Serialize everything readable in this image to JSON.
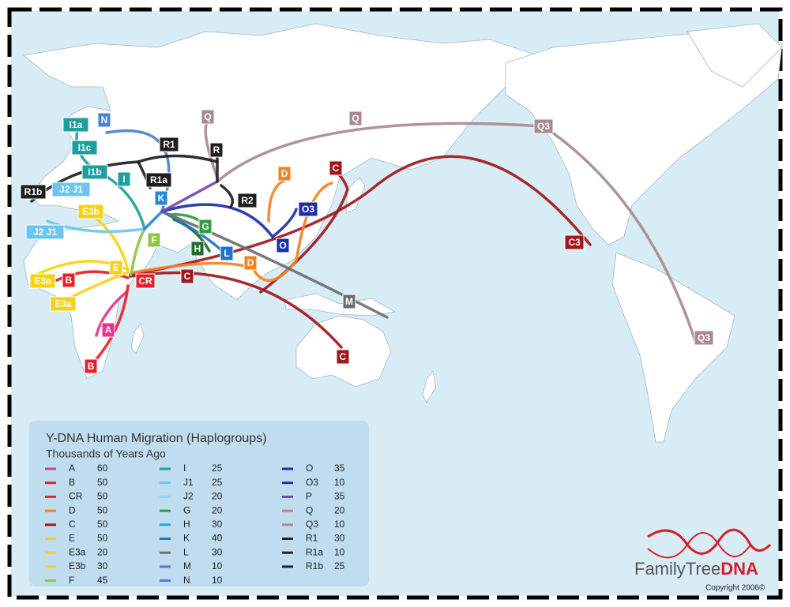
{
  "map_labels": [
    {
      "text": "I1a",
      "color": "#1f9e9e"
    },
    {
      "text": "N",
      "color": "#4a7fd4"
    },
    {
      "text": "I1c",
      "color": "#1f9e9e"
    },
    {
      "text": "R1",
      "color": "#1e1e1e"
    },
    {
      "text": "Q",
      "color": "#a88a8f"
    },
    {
      "text": "Q",
      "color": "#a88a8f"
    },
    {
      "text": "Q3",
      "color": "#a88a8f"
    },
    {
      "text": "R",
      "color": "#1e1e1e"
    },
    {
      "text": "C",
      "color": "#a3161b"
    },
    {
      "text": "I1b",
      "color": "#1f9e9e"
    },
    {
      "text": "I",
      "color": "#1f9e9e"
    },
    {
      "text": "R1a",
      "color": "#1e1e1e"
    },
    {
      "text": "D",
      "color": "#f58220"
    },
    {
      "text": "R1b",
      "color": "#1e1e1e"
    },
    {
      "text": "J2 J1",
      "color": "#6cc5f0"
    },
    {
      "text": "K",
      "color": "#1e8ad8"
    },
    {
      "text": "R2",
      "color": "#1e1e1e"
    },
    {
      "text": "O3",
      "color": "#1c2fa8"
    },
    {
      "text": "E3b",
      "color": "#f7d117"
    },
    {
      "text": "G",
      "color": "#2e9e3e"
    },
    {
      "text": "J2 J1",
      "color": "#6cc5f0"
    },
    {
      "text": "F",
      "color": "#8dc63f"
    },
    {
      "text": "O",
      "color": "#1c2fa8"
    },
    {
      "text": "C3",
      "color": "#a3161b"
    },
    {
      "text": "H",
      "color": "#1f6e2a"
    },
    {
      "text": "L",
      "color": "#1e74c8"
    },
    {
      "text": "D",
      "color": "#f58220"
    },
    {
      "text": "E",
      "color": "#f7d117"
    },
    {
      "text": "C",
      "color": "#a3161b"
    },
    {
      "text": "E3a",
      "color": "#f7d117"
    },
    {
      "text": "B",
      "color": "#e8202a"
    },
    {
      "text": "CR",
      "color": "#e8202a"
    },
    {
      "text": "E3a",
      "color": "#f7d117"
    },
    {
      "text": "M",
      "color": "#6d6e71"
    },
    {
      "text": "A",
      "color": "#e0388e"
    },
    {
      "text": "Q3",
      "color": "#a88a8f"
    },
    {
      "text": "B",
      "color": "#e8202a"
    },
    {
      "text": "C",
      "color": "#a3161b"
    }
  ],
  "legend": {
    "title": "Y-DNA Human Migration (Haplogroups)",
    "subtitle": "Thousands of Years Ago",
    "columns": [
      [
        {
          "name": "A",
          "value": "60",
          "color": "#e0388e"
        },
        {
          "name": "B",
          "value": "50",
          "color": "#e8202a"
        },
        {
          "name": "CR",
          "value": "50",
          "color": "#e8202a"
        },
        {
          "name": "D",
          "value": "50",
          "color": "#f58220"
        },
        {
          "name": "C",
          "value": "50",
          "color": "#a3161b"
        },
        {
          "name": "E",
          "value": "50",
          "color": "#f7d117"
        },
        {
          "name": "E3a",
          "value": "20",
          "color": "#f7d117"
        },
        {
          "name": "E3b",
          "value": "30",
          "color": "#f7d117"
        },
        {
          "name": "F",
          "value": "45",
          "color": "#8dc63f"
        }
      ],
      [
        {
          "name": "I",
          "value": "25",
          "color": "#1f9e9e"
        },
        {
          "name": "J1",
          "value": "25",
          "color": "#6cc5f0"
        },
        {
          "name": "J2",
          "value": "20",
          "color": "#8fd2f2"
        },
        {
          "name": "G",
          "value": "20",
          "color": "#2e9e3e"
        },
        {
          "name": "H",
          "value": "30",
          "color": "#27a3dd"
        },
        {
          "name": "K",
          "value": "40",
          "color": "#1e74c8"
        },
        {
          "name": "L",
          "value": "30",
          "color": "#6d6e71"
        },
        {
          "name": "M",
          "value": "10",
          "color": "#4f79c9"
        },
        {
          "name": "N",
          "value": "10",
          "color": "#4a7fd4"
        }
      ],
      [
        {
          "name": "O",
          "value": "35",
          "color": "#1c2fa8"
        },
        {
          "name": "O3",
          "value": "10",
          "color": "#1b2fa8"
        },
        {
          "name": "P",
          "value": "35",
          "color": "#6f49b6"
        },
        {
          "name": "Q",
          "value": "20",
          "color": "#a88a8f"
        },
        {
          "name": "Q3",
          "value": "10",
          "color": "#a88a8f"
        },
        {
          "name": "R1",
          "value": "30",
          "color": "#222222"
        },
        {
          "name": "R1a",
          "value": "10",
          "color": "#222222"
        },
        {
          "name": "R1b",
          "value": "25",
          "color": "#222222"
        }
      ]
    ]
  },
  "brand": {
    "name_part1": "FamilyTree",
    "name_part2": "DNA",
    "copyright": "Copyright 2006©"
  }
}
